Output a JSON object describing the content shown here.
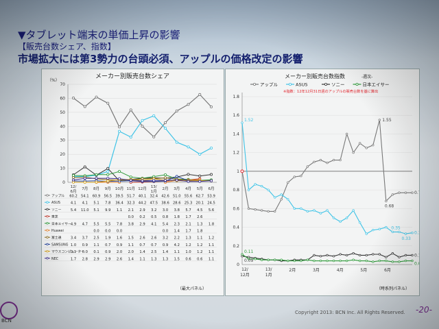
{
  "slide": {
    "title": "▼タブレット端末の単価上昇の影響",
    "subtitle": "【販売台数シェア、指数】",
    "headline": "市場拡大には第3勢力の台頭必須、アップルの価格改定の影響",
    "copyright": "Copyright 2013: BCN Inc. All Rights Reserved.",
    "page_number": "-20-",
    "logo_text": "BCN"
  },
  "chart_data": [
    {
      "type": "line",
      "title": "メーカー別販売台数シェア",
      "ylabel": "（%）",
      "ylim": [
        0,
        70
      ],
      "yticks": [
        0,
        10,
        20,
        30,
        40,
        50,
        60,
        70
      ],
      "categories": [
        "12/6月",
        "7月",
        "8月",
        "9月",
        "10月",
        "11月",
        "12月",
        "13/1月",
        "2月",
        "3月",
        "4月",
        "5月",
        "6月"
      ],
      "footnote": "（最大パネル）",
      "series": [
        {
          "name": "アップル",
          "color": "#777777",
          "values": [
            60.2,
            54.1,
            60.9,
            56.5,
            39.5,
            51.7,
            40.1,
            32.4,
            42.6,
            51.0,
            55.6,
            62.7,
            53.9
          ]
        },
        {
          "name": "ASUS",
          "color": "#3fc3e6",
          "values": [
            4.1,
            4.1,
            5.1,
            7.8,
            36.4,
            32.3,
            44.2,
            47.5,
            38.6,
            28.6,
            25.3,
            20.1,
            24.5
          ]
        },
        {
          "name": "ソニー",
          "color": "#333333",
          "values": [
            5.4,
            11.0,
            5.1,
            9.9,
            1.1,
            2.1,
            2.9,
            3.2,
            3.0,
            3.8,
            5.7,
            4.5,
            5.6
          ]
        },
        {
          "name": "東芝",
          "color": "#c0392b",
          "values": [
            null,
            null,
            null,
            null,
            null,
            0.0,
            0.2,
            0.5,
            0.8,
            1.8,
            1.7,
            2.6,
            null
          ]
        },
        {
          "name": "日本エイサー",
          "color": "#2e9a3a",
          "values": [
            4.9,
            4.7,
            5.5,
            5.5,
            7.8,
            3.8,
            2.9,
            4.1,
            5.4,
            2.3,
            2.1,
            1.3,
            1.8
          ]
        },
        {
          "name": "Huawei",
          "color": "#e67e22",
          "values": [
            null,
            null,
            0.0,
            0.0,
            0.0,
            null,
            null,
            null,
            0.0,
            1.4,
            1.7,
            1.8,
            null
          ]
        },
        {
          "name": "富士通",
          "color": "#8a6d1f",
          "values": [
            3.4,
            3.7,
            2.5,
            1.9,
            1.6,
            1.5,
            2.6,
            2.6,
            3.2,
            2.2,
            1.3,
            1.1,
            1.2
          ]
        },
        {
          "name": "SAMSUNG",
          "color": "#1f3f9a",
          "values": [
            1.0,
            0.9,
            1.1,
            0.7,
            0.9,
            1.1,
            0.7,
            0.7,
            0.9,
            4.2,
            1.2,
            1.2,
            1.1
          ]
        },
        {
          "name": "マウスコンピューター",
          "color": "#d4a017",
          "values": [
            0.1,
            0.0,
            0.1,
            0.9,
            2.0,
            2.0,
            1.4,
            2.5,
            1.4,
            1.1,
            1.0,
            1.2,
            1.1
          ]
        },
        {
          "name": "NEC",
          "color": "#3b2d8f",
          "values": [
            1.7,
            2.8,
            2.9,
            2.9,
            2.6,
            1.4,
            1.1,
            1.3,
            1.3,
            1.5,
            0.6,
            0.6,
            1.1
          ]
        }
      ]
    },
    {
      "type": "line",
      "title": "メーカー別販売台数指数",
      "title_suffix": "-週次-",
      "note": "※指数：12年12月31日週のアップルの販売台数を基に算出",
      "ylim": [
        0,
        1.8
      ],
      "yticks": [
        0,
        0.2,
        0.4,
        0.6,
        0.8,
        1.0,
        1.2,
        1.4,
        1.6,
        1.8
      ],
      "xticks": [
        "12/12月",
        "13/1月",
        "2月",
        "3月",
        "4月",
        "5月",
        "6月"
      ],
      "footnote": "（時系列パネル）",
      "reference_line": 1.0,
      "series": [
        {
          "name": "アップル",
          "color": "#777777",
          "values": [
            1.0,
            0.6,
            0.59,
            0.58,
            0.57,
            0.57,
            0.7,
            0.88,
            0.94,
            0.95,
            1.05,
            1.1,
            1.12,
            1.09,
            1.12,
            1.12,
            1.4,
            1.2,
            1.3,
            1.25,
            1.28,
            1.55,
            0.68,
            0.75,
            0.77,
            0.77,
            0.77
          ]
        },
        {
          "name": "ASUS",
          "color": "#3fc3e6",
          "values": [
            1.52,
            0.8,
            0.86,
            0.84,
            0.8,
            0.72,
            0.75,
            0.7,
            0.6,
            0.6,
            0.57,
            0.58,
            0.55,
            0.58,
            0.5,
            0.46,
            0.5,
            0.58,
            0.45,
            0.33,
            0.37,
            0.38,
            0.4,
            0.35,
            0.35,
            0.33,
            0.34
          ]
        },
        {
          "name": "ソニー",
          "color": "#333333",
          "values": [
            0.09,
            0.08,
            0.07,
            0.06,
            0.05,
            0.05,
            0.04,
            0.04,
            0.05,
            0.05,
            0.05,
            0.1,
            0.09,
            0.1,
            0.09,
            0.11,
            0.1,
            0.12,
            0.1,
            0.1,
            0.11,
            0.11,
            0.08,
            0.12,
            0.08,
            0.1,
            0.1
          ]
        },
        {
          "name": "日本エイサー",
          "color": "#2e9a3a",
          "values": [
            0.11,
            0.06,
            0.06,
            0.05,
            0.05,
            0.05,
            0.05,
            0.04,
            0.04,
            0.04,
            0.05,
            0.04,
            0.04,
            0.04,
            0.04,
            0.04,
            0.04,
            0.05,
            0.04,
            0.04,
            0.03,
            0.04,
            0.04,
            0.03,
            0.03,
            0.04,
            0.04
          ]
        }
      ],
      "annotations": [
        {
          "label": "1.52",
          "series": "ASUS",
          "index": 0,
          "color": "#3fc3e6"
        },
        {
          "label": "1.55",
          "series": "アップル",
          "index": 21,
          "color": "#444444"
        },
        {
          "label": "0.68",
          "series": "アップル",
          "index": 22,
          "color": "#444444"
        },
        {
          "label": "0.77",
          "series": "アップル",
          "index": 26,
          "color": "#444444"
        },
        {
          "label": "0.35",
          "series": "ASUS",
          "index": 23,
          "color": "#3fc3e6"
        },
        {
          "label": "0.33",
          "series": "ASUS",
          "index": 25,
          "color": "#3fc3e6"
        },
        {
          "label": "0.34",
          "series": "ASUS",
          "index": 26,
          "color": "#3fc3e6"
        },
        {
          "label": "0.11",
          "series": "日本エイサー",
          "index": 0,
          "color": "#2e9a3a"
        },
        {
          "label": "0.09",
          "series": "ソニー",
          "index": 0,
          "color": "#444444"
        },
        {
          "label": "0.10",
          "series": "ソニー",
          "index": 26,
          "color": "#444444"
        },
        {
          "label": "0.04",
          "series": "日本エイサー",
          "index": 26,
          "color": "#2e9a3a"
        }
      ]
    }
  ]
}
